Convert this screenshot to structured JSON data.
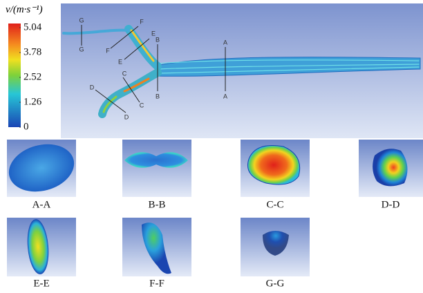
{
  "colorbar": {
    "title": "v/(m·s⁻¹)",
    "range": [
      0,
      5.04
    ],
    "ticks": [
      5.04,
      3.78,
      2.52,
      1.26,
      0
    ]
  },
  "section_markers": [
    "A",
    "B",
    "C",
    "D",
    "E",
    "F",
    "G"
  ],
  "panels": [
    {
      "label": "A-A"
    },
    {
      "label": "B-B"
    },
    {
      "label": "C-C"
    },
    {
      "label": "D-D"
    },
    {
      "label": "E-E"
    },
    {
      "label": "F-F"
    },
    {
      "label": "G-G"
    }
  ]
}
